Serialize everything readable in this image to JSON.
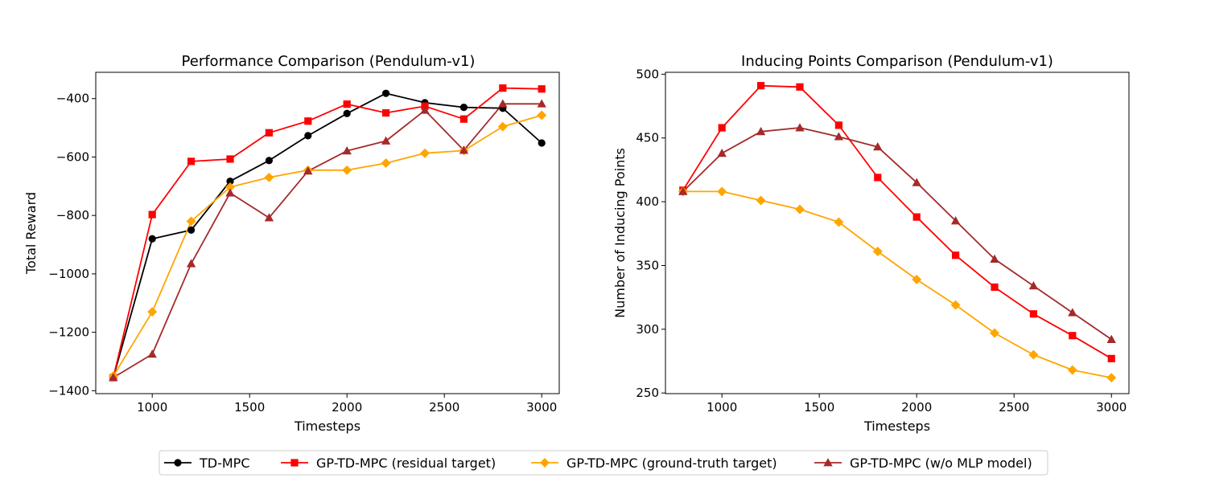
{
  "legend": {
    "entries": [
      {
        "label": "TD-MPC",
        "color": "#000000",
        "marker": "circle"
      },
      {
        "label": "GP-TD-MPC (residual target)",
        "color": "#ff0000",
        "marker": "square"
      },
      {
        "label": "GP-TD-MPC (ground-truth target)",
        "color": "#ffa500",
        "marker": "diamond"
      },
      {
        "label": "GP-TD-MPC (w/o MLP model)",
        "color": "#a52a2a",
        "marker": "triangle"
      }
    ],
    "position": "bottom-center"
  },
  "chart_data": [
    {
      "type": "line",
      "title": "Performance Comparison (Pendulum-v1)",
      "xlabel": "Timesteps",
      "ylabel": "Total Reward",
      "xlim": [
        710,
        3090
      ],
      "ylim": [
        -1410,
        -310
      ],
      "xticks": [
        1000,
        1500,
        2000,
        2500,
        3000
      ],
      "yticks": [
        -1400,
        -1200,
        -1000,
        -800,
        -600,
        -400
      ],
      "ytick_labels": [
        "−1400",
        "−1200",
        "−1000",
        "−800",
        "−600",
        "−400"
      ],
      "grid": false,
      "x": [
        800,
        1000,
        1200,
        1400,
        1600,
        1800,
        2000,
        2200,
        2400,
        2600,
        2800,
        3000
      ],
      "series": [
        {
          "name": "TD-MPC",
          "color": "#000000",
          "marker": "circle",
          "values": [
            -1355,
            -880,
            -850,
            -683,
            -612,
            -527,
            -451,
            -382,
            -414,
            -430,
            -433,
            -552
          ]
        },
        {
          "name": "GP-TD-MPC (residual target)",
          "color": "#ff0000",
          "marker": "square",
          "values": [
            -1355,
            -797,
            -615,
            -607,
            -517,
            -477,
            -419,
            -449,
            -426,
            -470,
            -364,
            -367
          ]
        },
        {
          "name": "GP-TD-MPC (ground-truth target)",
          "color": "#ffa500",
          "marker": "diamond",
          "values": [
            -1350,
            -1130,
            -820,
            -703,
            -670,
            -645,
            -645,
            -621,
            -587,
            -578,
            -496,
            -457
          ]
        },
        {
          "name": "GP-TD-MPC (w/o MLP model)",
          "color": "#a52a2a",
          "marker": "triangle",
          "values": [
            -1355,
            -1275,
            -965,
            -723,
            -808,
            -648,
            -579,
            -545,
            -440,
            -577,
            -418,
            -418
          ]
        }
      ]
    },
    {
      "type": "line",
      "title": "Inducing Points Comparison (Pendulum-v1)",
      "xlabel": "Timesteps",
      "ylabel": "Number of Inducing Points",
      "xlim": [
        710,
        3090
      ],
      "ylim": [
        249.5,
        501.5
      ],
      "xticks": [
        1000,
        1500,
        2000,
        2500,
        3000
      ],
      "yticks": [
        250,
        300,
        350,
        400,
        450,
        500
      ],
      "ytick_labels": [
        "250",
        "300",
        "350",
        "400",
        "450",
        "500"
      ],
      "grid": false,
      "x": [
        800,
        1000,
        1200,
        1400,
        1600,
        1800,
        2000,
        2200,
        2400,
        2600,
        2800,
        3000
      ],
      "series": [
        {
          "name": "GP-TD-MPC (residual target)",
          "color": "#ff0000",
          "marker": "square",
          "values": [
            409,
            458,
            491,
            490,
            460,
            419,
            388,
            358,
            333,
            312,
            295,
            277
          ]
        },
        {
          "name": "GP-TD-MPC (ground-truth target)",
          "color": "#ffa500",
          "marker": "diamond",
          "values": [
            408,
            408,
            401,
            394,
            384,
            361,
            339,
            319,
            297,
            280,
            268,
            262
          ]
        },
        {
          "name": "GP-TD-MPC (w/o MLP model)",
          "color": "#a52a2a",
          "marker": "triangle",
          "values": [
            408,
            438,
            455,
            458,
            451,
            443,
            415,
            385,
            355,
            334,
            313,
            292
          ]
        }
      ]
    }
  ]
}
